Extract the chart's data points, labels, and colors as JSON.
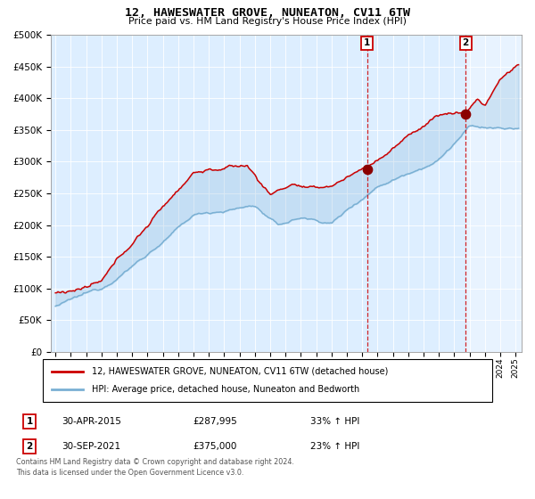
{
  "title": "12, HAWESWATER GROVE, NUNEATON, CV11 6TW",
  "subtitle": "Price paid vs. HM Land Registry's House Price Index (HPI)",
  "legend_line1": "12, HAWESWATER GROVE, NUNEATON, CV11 6TW (detached house)",
  "legend_line2": "HPI: Average price, detached house, Nuneaton and Bedworth",
  "annotation1_label": "1",
  "annotation1_date": "30-APR-2015",
  "annotation1_price": "£287,995",
  "annotation1_hpi": "33% ↑ HPI",
  "annotation2_label": "2",
  "annotation2_date": "30-SEP-2021",
  "annotation2_price": "£375,000",
  "annotation2_hpi": "23% ↑ HPI",
  "copyright": "Contains HM Land Registry data © Crown copyright and database right 2024.\nThis data is licensed under the Open Government Licence v3.0.",
  "red_color": "#cc0000",
  "blue_color": "#7ab0d4",
  "background_color": "#ddeeff",
  "vline1_x_year": 2015.33,
  "vline2_x_year": 2021.75,
  "point1_x": 2015.33,
  "point1_y": 287995,
  "point2_x": 2021.75,
  "point2_y": 375000,
  "ylim": [
    0,
    500000
  ],
  "xlim_start": 1994.7,
  "xlim_end": 2025.4
}
